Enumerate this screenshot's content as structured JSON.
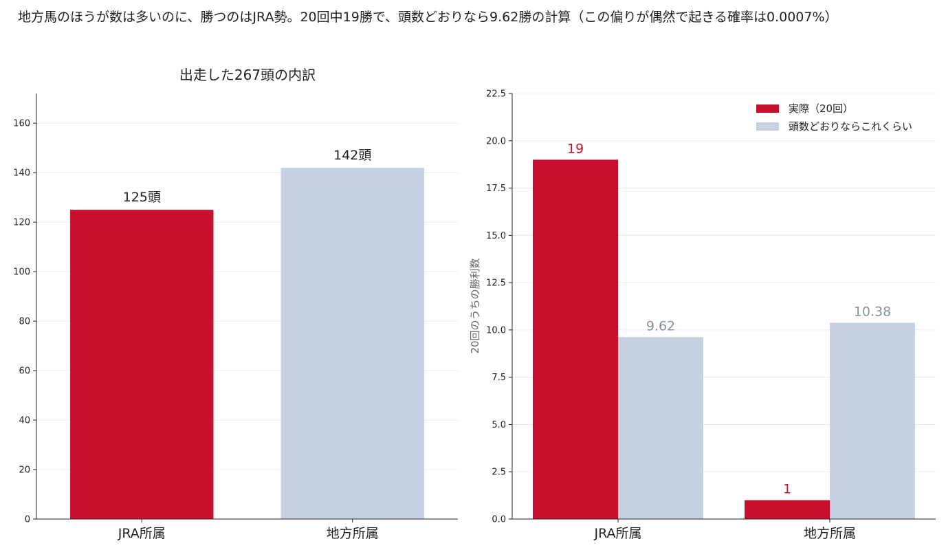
{
  "suptitle": "地方馬のほうが数は多いのに、勝つのはJRA勢。20回中19勝で、頭数どおりなら9.62勝の計算（この偏りが偶然で起きる確率は0.0007%）",
  "colors": {
    "jra": "#c8102e",
    "expected": "#c5d1e1",
    "grid": "#e6e6e6",
    "axis": "#222222",
    "expected_label": "#8592a3"
  },
  "chart_data": [
    {
      "type": "bar",
      "title": "出走した267頭の内訳",
      "categories": [
        "JRA所属",
        "地方所属"
      ],
      "values": [
        125,
        142
      ],
      "value_labels": [
        "125頭",
        "142頭"
      ],
      "bar_colors": [
        "#c8102e",
        "#c5d1e1"
      ],
      "ylim": [
        0,
        172
      ],
      "yticks": [
        0,
        20,
        40,
        60,
        80,
        100,
        120,
        140,
        160
      ],
      "ytick_labels": [
        "0",
        "20",
        "40",
        "60",
        "80",
        "100",
        "120",
        "140",
        "160"
      ],
      "xlabel": "",
      "ylabel": "",
      "grid": true
    },
    {
      "type": "bar",
      "title": "",
      "categories": [
        "JRA所属",
        "地方所属"
      ],
      "series": [
        {
          "name": "実際（20回）",
          "values": [
            19,
            1
          ],
          "value_labels": [
            "19",
            "1"
          ],
          "color": "#c8102e",
          "label_color": "#c8102e"
        },
        {
          "name": "頭数どおりならこれくらい",
          "values": [
            9.62,
            10.38
          ],
          "value_labels": [
            "9.62",
            "10.38"
          ],
          "color": "#c5d1e1",
          "label_color": "#8592a3"
        }
      ],
      "ylim": [
        0,
        22.5
      ],
      "yticks": [
        0,
        2.5,
        5,
        7.5,
        10,
        12.5,
        15,
        17.5,
        20,
        22.5
      ],
      "ytick_labels": [
        "0.0",
        "2.5",
        "5.0",
        "7.5",
        "10.0",
        "12.5",
        "15.0",
        "17.5",
        "20.0",
        "22.5"
      ],
      "xlabel": "",
      "ylabel": "20回のうちの勝利数",
      "legend_position": "top-right",
      "grid": true
    }
  ]
}
